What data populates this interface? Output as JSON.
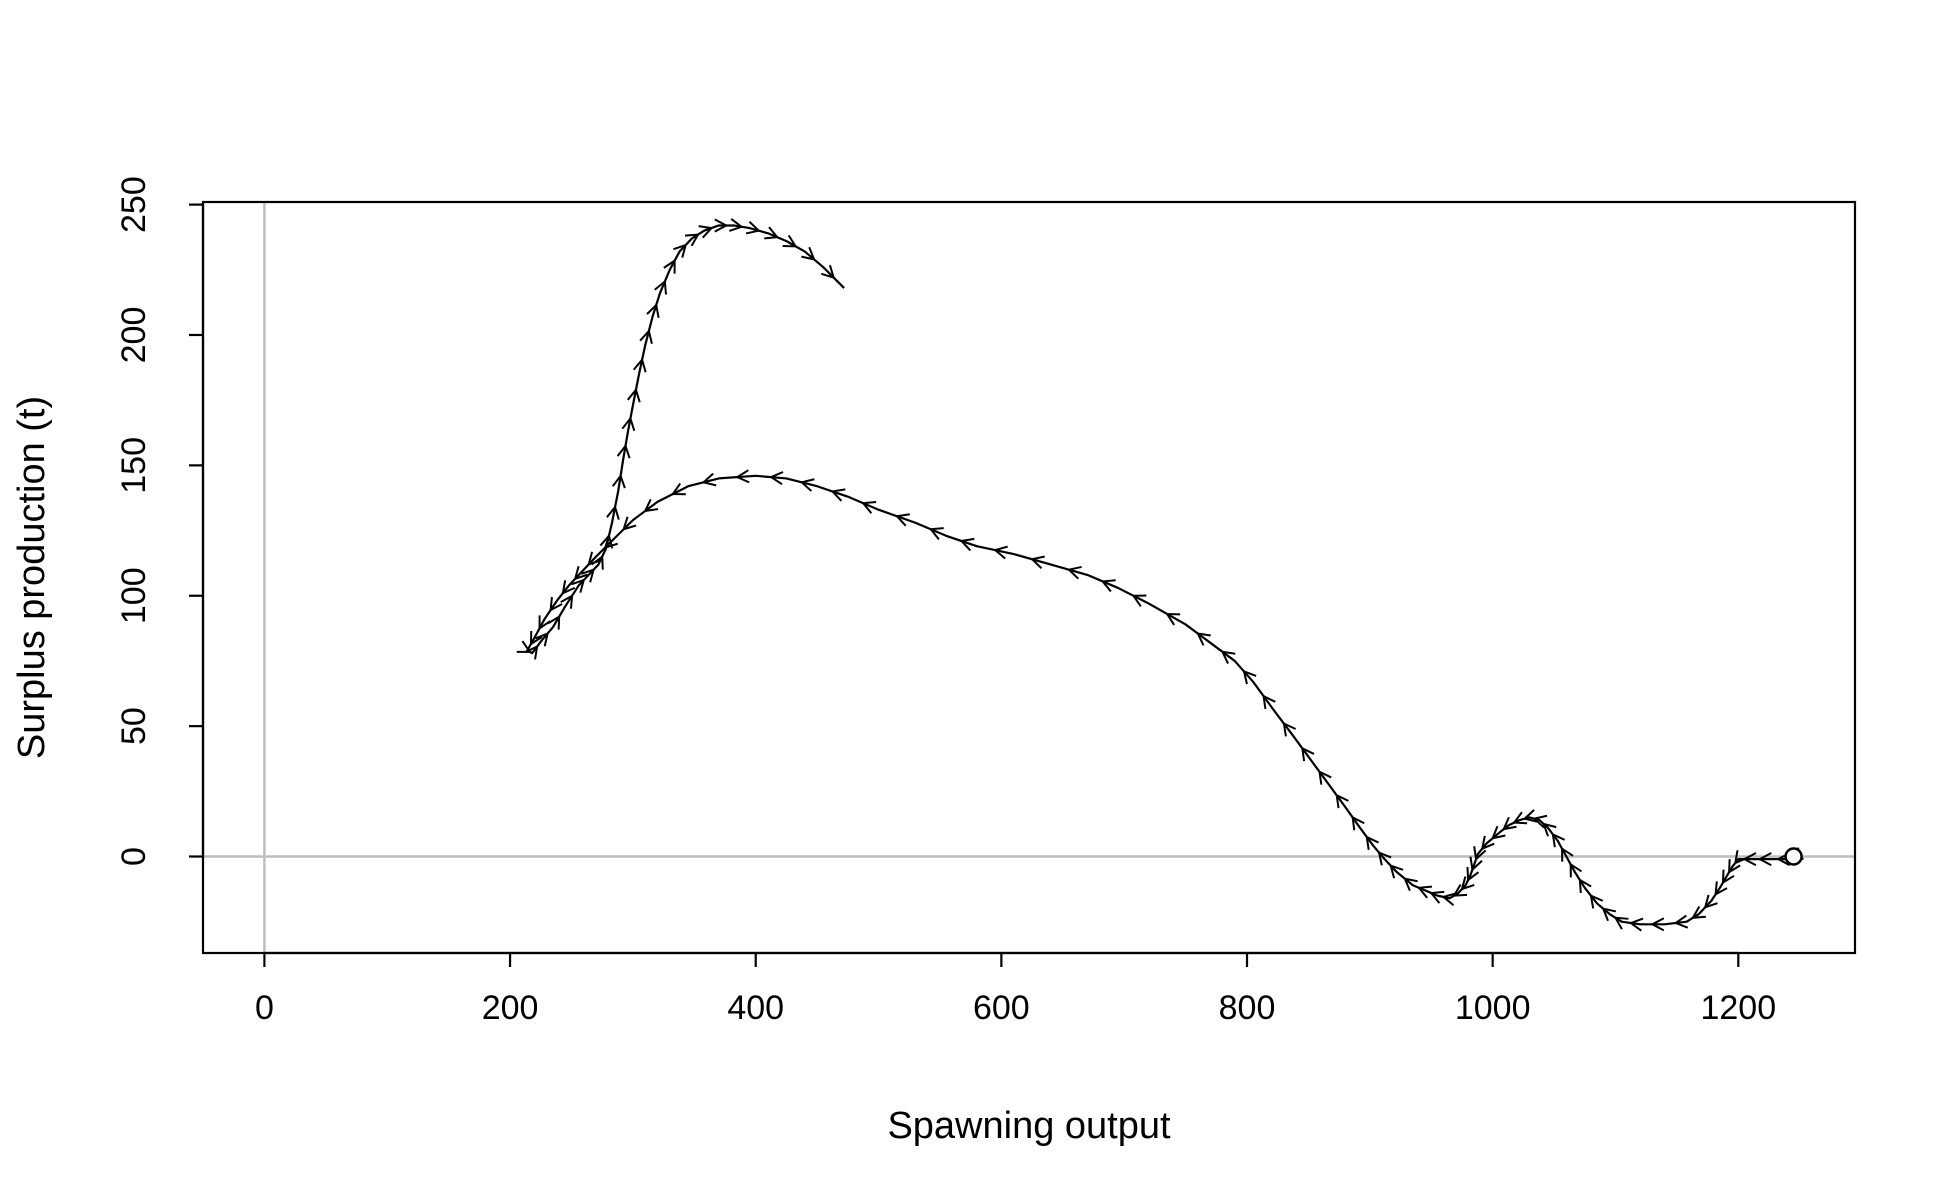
{
  "chart_data": {
    "type": "line",
    "title": "",
    "xlabel": "Spawning output",
    "ylabel": "Surplus production (t)",
    "xlim": [
      -50,
      1295
    ],
    "ylim": [
      -37,
      251
    ],
    "xticks": [
      0,
      200,
      400,
      600,
      800,
      1000,
      1200
    ],
    "yticks": [
      0,
      50,
      100,
      150,
      200,
      250
    ],
    "grid": false,
    "reference_lines": {
      "x": 0,
      "y": 0,
      "color": "#bebebe"
    },
    "arrows": true,
    "line_color": "#000000",
    "series": [
      {
        "x": [
          1245,
          1240,
          1225,
          1210,
          1200,
          1195,
          1190,
          1185,
          1178,
          1168,
          1158,
          1140,
          1120,
          1105,
          1095,
          1085,
          1075,
          1067,
          1060,
          1053,
          1045,
          1038,
          1030,
          1022,
          1013,
          1005,
          995,
          988,
          985,
          982,
          978,
          972,
          965,
          955,
          945,
          935,
          922,
          912,
          903,
          892,
          880,
          866,
          852,
          838,
          822,
          805,
          790,
          770,
          750,
          720,
          695,
          670,
          640,
          610,
          580,
          555,
          530,
          500,
          475,
          450,
          425,
          400,
          370,
          345,
          320,
          300,
          285,
          270,
          258,
          248,
          238,
          228,
          220,
          214,
          218,
          226,
          235,
          245,
          256,
          264,
          272,
          278,
          283,
          288,
          292,
          296,
          300,
          305,
          310,
          316,
          322,
          330,
          338,
          348,
          358,
          370,
          382,
          395,
          410,
          425,
          440,
          455,
          472
        ],
        "y": [
          0,
          -1,
          -1,
          -1,
          -1,
          -4,
          -8,
          -12,
          -17,
          -22,
          -25,
          -26,
          -26,
          -25,
          -22,
          -18,
          -12,
          -6,
          0,
          6,
          11,
          14,
          15,
          14,
          12,
          9,
          5,
          1,
          -3,
          -7,
          -11,
          -14,
          -16,
          -15,
          -13,
          -11,
          -6,
          -1,
          4,
          11,
          19,
          28,
          37,
          46,
          56,
          67,
          75,
          82,
          89,
          97,
          103,
          108,
          112,
          116,
          119,
          123,
          128,
          133,
          138,
          142,
          145,
          146,
          145,
          142,
          136,
          129,
          122,
          115,
          109,
          104,
          98,
          91,
          84,
          79,
          78,
          83,
          88,
          96,
          104,
          108,
          112,
          118,
          128,
          140,
          152,
          163,
          173,
          185,
          196,
          207,
          216,
          225,
          232,
          237,
          240,
          242,
          242,
          241,
          239,
          236,
          232,
          226,
          218
        ]
      }
    ],
    "markers": [
      {
        "x": 1245,
        "y": 0,
        "shape": "open-circle"
      }
    ]
  }
}
